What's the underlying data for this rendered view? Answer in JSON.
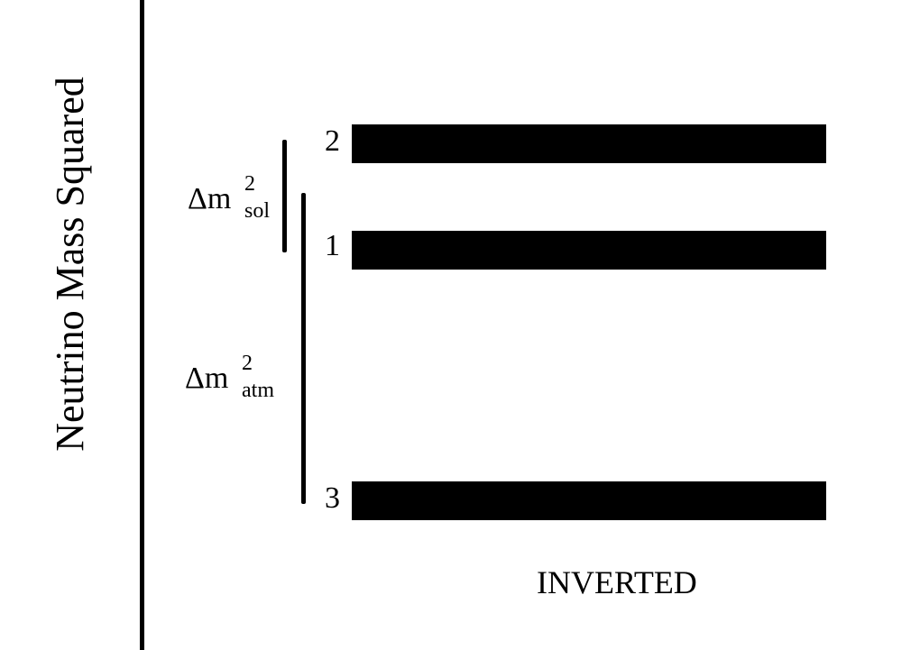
{
  "diagram": {
    "axis_label": "Neutrino Mass Squared",
    "ordering_label": "INVERTED",
    "levels": [
      {
        "label": "2"
      },
      {
        "label": "1"
      },
      {
        "label": "3"
      }
    ],
    "splittings": {
      "solar": {
        "symbol": "Δm",
        "superscript": "2",
        "subscript": "sol"
      },
      "atmospheric": {
        "symbol": "Δm",
        "superscript": "2",
        "subscript": "atm"
      }
    }
  }
}
